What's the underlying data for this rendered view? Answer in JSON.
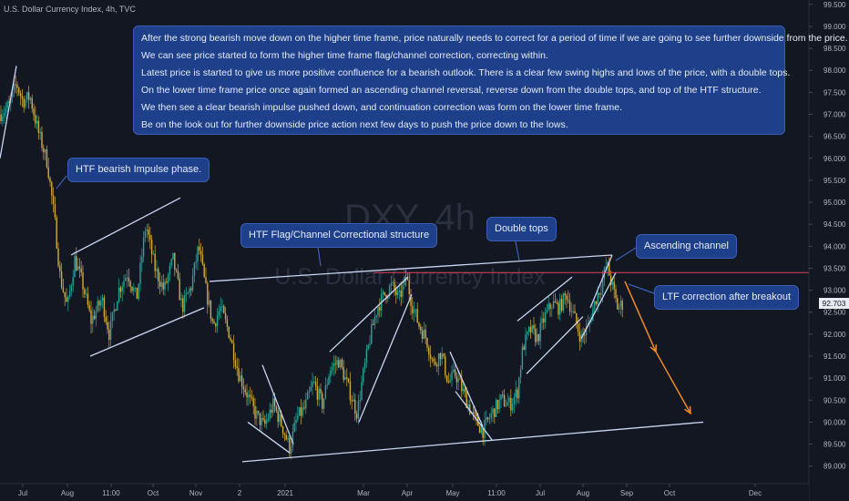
{
  "header": {
    "symbol_line": "U.S. Dollar Currency Index, 4h, TVC"
  },
  "watermark": {
    "ticker": "DXY, 4h",
    "name": "U.S. Dollar Currency Index"
  },
  "main_note": {
    "lines": [
      "After the strong bearish move down on the higher time frame, price naturally needs to correct for a period of time if we are going to see further downside from the price.",
      "We can see price started to form the higher time frame flag/channel correction, correcting within.",
      "Latest price is started to give us more positive confluence for a bearish outlook. There is a clear few swing highs and lows of the price, with a double tops.",
      "On the lower time frame price once again formed an ascending channel reversal, reverse down from the double tops, and top of the HTF structure.",
      "We then see a clear bearish impulse pushed down, and continuation correction was form on the lower time frame.",
      "Be on the look out for further downside price action next few days to push the price down to the lows."
    ]
  },
  "annotations": {
    "impulse": "HTF bearish Impulse phase.",
    "flag": "HTF Flag/Channel Correctional structure",
    "double_tops": "Double tops",
    "asc_channel": "Ascending channel",
    "ltf_correction": "LTF correction after breakout"
  },
  "current_price_label": "92.703",
  "colors": {
    "background": "#131722",
    "candle_up": "#26a69a",
    "candle_down": "#d4aa3a",
    "trendline": "#c9d6f2",
    "resistance": "#e0405a",
    "projection": "#f08a24",
    "callout_bg": "#1e3f8a"
  },
  "chart_data": {
    "type": "candlestick",
    "title": "U.S. Dollar Currency Index, 4h, TVC",
    "xlabel": "",
    "ylabel": "",
    "ylim": [
      88.6,
      99.6
    ],
    "grid": false,
    "x_ticks": [
      "Jul",
      "Aug",
      "11:00",
      "Oct",
      "Nov",
      "2",
      "2021",
      "Mar",
      "Apr",
      "May",
      "11:00",
      "Jul",
      "Aug",
      "Sep",
      "Oct",
      "Dec"
    ],
    "y_ticks": [
      "89.000",
      "89.500",
      "90.000",
      "90.500",
      "91.000",
      "91.500",
      "92.000",
      "92.500",
      "93.000",
      "93.500",
      "94.000",
      "94.500",
      "95.000",
      "95.500",
      "96.000",
      "96.500",
      "97.000",
      "97.500",
      "98.000",
      "98.500",
      "99.000",
      "99.500"
    ],
    "price_path": [
      {
        "x": 0,
        "y": 97.0
      },
      {
        "x": 10,
        "y": 97.2
      },
      {
        "x": 18,
        "y": 97.7
      },
      {
        "x": 25,
        "y": 97.3
      },
      {
        "x": 33,
        "y": 97.4
      },
      {
        "x": 42,
        "y": 96.6
      },
      {
        "x": 52,
        "y": 95.9
      },
      {
        "x": 60,
        "y": 94.6
      },
      {
        "x": 66,
        "y": 93.3
      },
      {
        "x": 74,
        "y": 92.6
      },
      {
        "x": 82,
        "y": 93.7
      },
      {
        "x": 90,
        "y": 93.2
      },
      {
        "x": 100,
        "y": 92.3
      },
      {
        "x": 112,
        "y": 92.8
      },
      {
        "x": 120,
        "y": 92.0
      },
      {
        "x": 130,
        "y": 93.0
      },
      {
        "x": 140,
        "y": 93.4
      },
      {
        "x": 150,
        "y": 92.8
      },
      {
        "x": 160,
        "y": 94.5
      },
      {
        "x": 170,
        "y": 93.5
      },
      {
        "x": 180,
        "y": 93.0
      },
      {
        "x": 190,
        "y": 93.7
      },
      {
        "x": 200,
        "y": 92.6
      },
      {
        "x": 210,
        "y": 93.1
      },
      {
        "x": 218,
        "y": 94.0
      },
      {
        "x": 226,
        "y": 93.0
      },
      {
        "x": 234,
        "y": 92.2
      },
      {
        "x": 242,
        "y": 92.6
      },
      {
        "x": 252,
        "y": 92.0
      },
      {
        "x": 262,
        "y": 91.1
      },
      {
        "x": 270,
        "y": 90.7
      },
      {
        "x": 280,
        "y": 90.2
      },
      {
        "x": 290,
        "y": 89.9
      },
      {
        "x": 300,
        "y": 90.4
      },
      {
        "x": 310,
        "y": 89.9
      },
      {
        "x": 318,
        "y": 89.4
      },
      {
        "x": 326,
        "y": 90.1
      },
      {
        "x": 334,
        "y": 90.3
      },
      {
        "x": 344,
        "y": 90.9
      },
      {
        "x": 354,
        "y": 90.4
      },
      {
        "x": 362,
        "y": 91.2
      },
      {
        "x": 372,
        "y": 91.4
      },
      {
        "x": 382,
        "y": 90.8
      },
      {
        "x": 392,
        "y": 90.2
      },
      {
        "x": 398,
        "y": 91.0
      },
      {
        "x": 406,
        "y": 91.9
      },
      {
        "x": 414,
        "y": 92.6
      },
      {
        "x": 422,
        "y": 92.9
      },
      {
        "x": 430,
        "y": 93.1
      },
      {
        "x": 438,
        "y": 92.8
      },
      {
        "x": 446,
        "y": 93.3
      },
      {
        "x": 452,
        "y": 92.7
      },
      {
        "x": 460,
        "y": 92.2
      },
      {
        "x": 468,
        "y": 91.9
      },
      {
        "x": 476,
        "y": 91.3
      },
      {
        "x": 484,
        "y": 91.6
      },
      {
        "x": 492,
        "y": 90.9
      },
      {
        "x": 500,
        "y": 91.1
      },
      {
        "x": 510,
        "y": 90.6
      },
      {
        "x": 520,
        "y": 90.1
      },
      {
        "x": 530,
        "y": 89.8
      },
      {
        "x": 540,
        "y": 90.2
      },
      {
        "x": 550,
        "y": 90.5
      },
      {
        "x": 560,
        "y": 90.4
      },
      {
        "x": 568,
        "y": 90.7
      },
      {
        "x": 574,
        "y": 91.7
      },
      {
        "x": 582,
        "y": 92.1
      },
      {
        "x": 590,
        "y": 91.9
      },
      {
        "x": 598,
        "y": 92.4
      },
      {
        "x": 606,
        "y": 92.7
      },
      {
        "x": 614,
        "y": 92.6
      },
      {
        "x": 622,
        "y": 92.9
      },
      {
        "x": 630,
        "y": 92.4
      },
      {
        "x": 638,
        "y": 91.9
      },
      {
        "x": 646,
        "y": 92.2
      },
      {
        "x": 654,
        "y": 92.8
      },
      {
        "x": 660,
        "y": 93.1
      },
      {
        "x": 666,
        "y": 93.6
      },
      {
        "x": 672,
        "y": 93.1
      },
      {
        "x": 678,
        "y": 92.6
      },
      {
        "x": 684,
        "y": 92.7
      }
    ],
    "trendlines": [
      {
        "from": [
          0,
          96.0
        ],
        "to": [
          18,
          98.1
        ]
      },
      {
        "from": [
          78,
          93.8
        ],
        "to": [
          198,
          95.1
        ]
      },
      {
        "from": [
          99,
          91.5
        ],
        "to": [
          224,
          92.6
        ]
      },
      {
        "from": [
          230,
          93.2
        ],
        "to": [
          672,
          93.8
        ]
      },
      {
        "from": [
          266,
          89.1
        ],
        "to": [
          772,
          90.0
        ]
      },
      {
        "from": [
          272,
          90.0
        ],
        "to": [
          318,
          89.3
        ]
      },
      {
        "from": [
          288,
          91.3
        ],
        "to": [
          322,
          89.5
        ]
      },
      {
        "from": [
          362,
          91.6
        ],
        "to": [
          448,
          93.3
        ]
      },
      {
        "from": [
          394,
          90.0
        ],
        "to": [
          452,
          92.9
        ]
      },
      {
        "from": [
          494,
          91.6
        ],
        "to": [
          530,
          89.9
        ]
      },
      {
        "from": [
          500,
          90.7
        ],
        "to": [
          540,
          89.6
        ]
      },
      {
        "from": [
          568,
          92.3
        ],
        "to": [
          628,
          93.3
        ]
      },
      {
        "from": [
          578,
          91.1
        ],
        "to": [
          640,
          92.4
        ]
      },
      {
        "from": [
          638,
          91.9
        ],
        "to": [
          676,
          93.4
        ]
      },
      {
        "from": [
          648,
          92.6
        ],
        "to": [
          672,
          93.8
        ]
      }
    ],
    "resistance_level": 93.4,
    "current_price": 92.703,
    "projection": [
      {
        "from": [
          686,
          93.2
        ],
        "to": [
          720,
          91.6
        ]
      },
      {
        "from": [
          720,
          91.6
        ],
        "to": [
          758,
          90.2
        ]
      }
    ]
  }
}
